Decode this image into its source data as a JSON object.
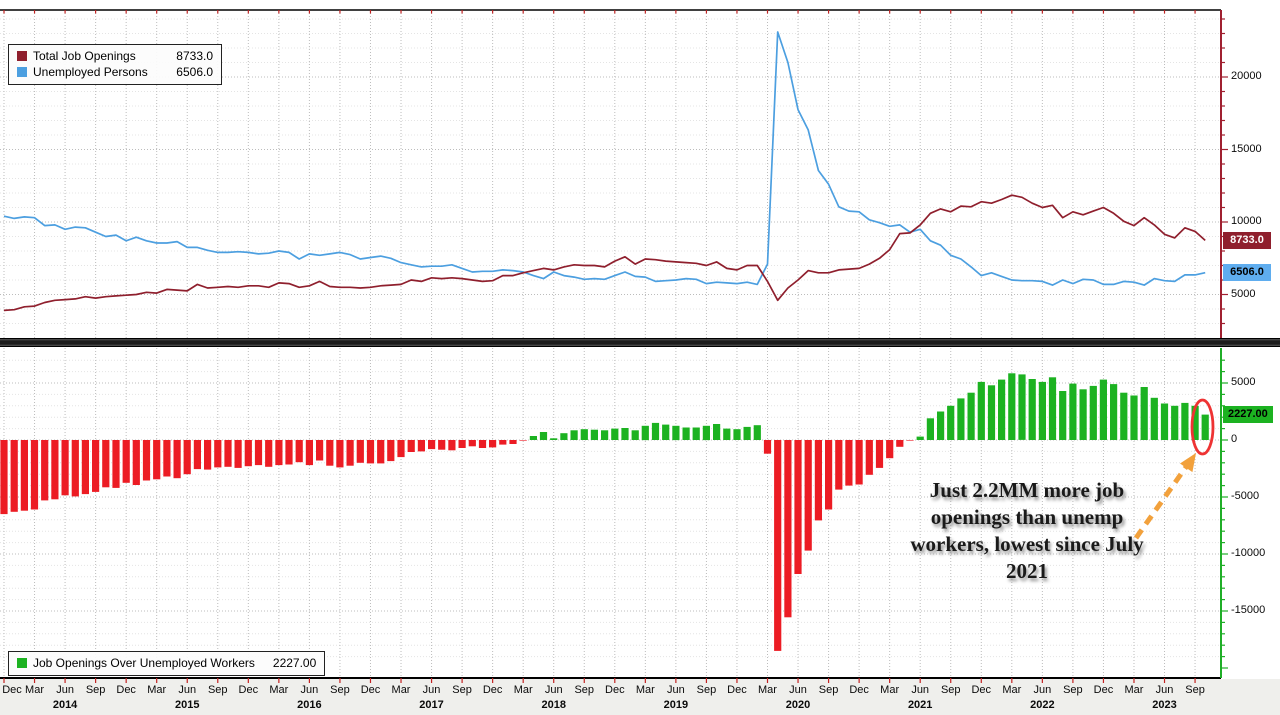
{
  "chart_data": {
    "type": "multi-panel-line-bar",
    "x_axis": {
      "quarter_cycle": [
        "Dec",
        "Mar",
        "Jun",
        "Sep"
      ],
      "years": [
        "2014",
        "2015",
        "2016",
        "2017",
        "2018",
        "2019",
        "2020",
        "2021",
        "2022",
        "2023"
      ],
      "frequency": "monthly",
      "points": 119
    },
    "top_panel": {
      "kind": "line",
      "yticks": [
        20000,
        15000,
        10000,
        5000
      ],
      "ylim": [
        2000,
        24350
      ],
      "grid": true,
      "axis_color": "#a02030",
      "series": [
        {
          "name": "Total Job Openings",
          "last_label": "8733.0",
          "color": "#8f1f2d",
          "badge_bg": "#8f1f2d",
          "badge_fg": "#ffffff",
          "values": [
            3900,
            3950,
            4150,
            4200,
            4450,
            4600,
            4650,
            4700,
            4850,
            4750,
            4850,
            4900,
            4950,
            5000,
            5150,
            5100,
            5350,
            5300,
            5250,
            5700,
            5450,
            5500,
            5550,
            5500,
            5600,
            5600,
            5500,
            5800,
            5750,
            5500,
            5600,
            5900,
            5550,
            5500,
            5500,
            5450,
            5500,
            5600,
            5650,
            5700,
            6000,
            5900,
            6150,
            6100,
            6150,
            6100,
            6000,
            5900,
            5950,
            6300,
            6300,
            6500,
            6650,
            6800,
            6700,
            6900,
            7050,
            7000,
            7000,
            6900,
            7300,
            7600,
            7100,
            7450,
            7400,
            7300,
            7250,
            7200,
            7150,
            7000,
            7250,
            6800,
            6700,
            7000,
            7000,
            5900,
            4600,
            5450,
            6000,
            6650,
            6500,
            6500,
            6700,
            6750,
            6800,
            7100,
            7500,
            8100,
            9200,
            9250,
            9800,
            10600,
            10900,
            10700,
            11100,
            11050,
            11400,
            11300,
            11550,
            11850,
            11700,
            11300,
            11000,
            11150,
            10300,
            10700,
            10500,
            10750,
            11000,
            10600,
            10050,
            9750,
            10300,
            9800,
            9150,
            8900,
            9600,
            9350,
            8733
          ]
        },
        {
          "name": "Unemployed Persons",
          "last_label": "6506.0",
          "color": "#4c9fe0",
          "badge_bg": "#5fadef",
          "badge_fg": "#000000",
          "values": [
            10400,
            10250,
            10350,
            10300,
            9750,
            9800,
            9500,
            9650,
            9600,
            9300,
            9000,
            9100,
            8700,
            8950,
            8700,
            8550,
            8550,
            8650,
            8250,
            8250,
            8050,
            7900,
            7900,
            7950,
            7900,
            7800,
            7850,
            8000,
            7900,
            7450,
            7800,
            7700,
            7800,
            7900,
            7750,
            7450,
            7550,
            7650,
            7500,
            7200,
            7050,
            6900,
            6950,
            6950,
            7050,
            6800,
            6550,
            6600,
            6600,
            6700,
            6650,
            6550,
            6300,
            6100,
            6550,
            6300,
            6200,
            6050,
            6100,
            6050,
            6300,
            6550,
            6250,
            6200,
            5900,
            5950,
            6000,
            6100,
            6050,
            5750,
            5850,
            5800,
            5750,
            5850,
            5700,
            7100,
            23100,
            21000,
            17750,
            16350,
            13550,
            12600,
            11050,
            10750,
            10700,
            10150,
            9950,
            9700,
            9800,
            9300,
            9500,
            8700,
            8400,
            7700,
            7450,
            6900,
            6300,
            6500,
            6250,
            6000,
            5950,
            5950,
            5900,
            5650,
            6000,
            5750,
            6050,
            6000,
            5700,
            5700,
            5900,
            5850,
            5650,
            6100,
            5950,
            5900,
            6350,
            6350,
            6506
          ]
        }
      ]
    },
    "bottom_panel": {
      "kind": "bar",
      "series_name": "Job Openings Over Unemployed Workers",
      "last_label": "2227.00",
      "yticks": [
        5000,
        0,
        -5000,
        -10000,
        -15000
      ],
      "ylim": [
        -21000,
        8000
      ],
      "grid": true,
      "axis_color": "#1fae27",
      "positive_color": "#1cb221",
      "negative_color": "#ec1c24",
      "badge_bg": "#1cb221",
      "badge_fg": "#000000",
      "values": [
        -6500,
        -6300,
        -6200,
        -6100,
        -5300,
        -5200,
        -4850,
        -4950,
        -4750,
        -4550,
        -4150,
        -4200,
        -3750,
        -3950,
        -3550,
        -3450,
        -3200,
        -3350,
        -3000,
        -2550,
        -2600,
        -2400,
        -2350,
        -2450,
        -2300,
        -2200,
        -2350,
        -2200,
        -2150,
        -1950,
        -2200,
        -1800,
        -2250,
        -2400,
        -2250,
        -2000,
        -2050,
        -2050,
        -1850,
        -1500,
        -1050,
        -1000,
        -800,
        -850,
        -900,
        -700,
        -550,
        -700,
        -650,
        -400,
        -350,
        -50,
        350,
        700,
        150,
        600,
        850,
        950,
        900,
        850,
        1000,
        1050,
        850,
        1250,
        1500,
        1350,
        1250,
        1100,
        1100,
        1250,
        1400,
        1000,
        950,
        1150,
        1300,
        -1200,
        -18500,
        -15550,
        -11750,
        -9700,
        -7050,
        -6100,
        -4350,
        -4000,
        -3900,
        -3050,
        -2450,
        -1600,
        -600,
        -50,
        300,
        1900,
        2500,
        3000,
        3650,
        4150,
        5100,
        4800,
        5300,
        5850,
        5750,
        5350,
        5100,
        5500,
        4300,
        4950,
        4450,
        4750,
        5300,
        4900,
        4150,
        3900,
        4650,
        3700,
        3200,
        3000,
        3250,
        3000,
        2227
      ]
    }
  },
  "legend_top": {
    "rows": [
      {
        "label": "Total Job Openings",
        "value": "8733.0"
      },
      {
        "label": "Unemployed Persons",
        "value": "6506.0"
      }
    ]
  },
  "legend_bottom": {
    "label": "Job Openings Over Unemployed Workers",
    "value": "2227.00"
  },
  "annotation": {
    "lines": [
      "Just 2.2MM more job",
      "openings than unemp",
      "workers, lowest since July",
      "2021"
    ],
    "arrow_color": "#f2a13c",
    "circle_color": "#ee3333"
  }
}
